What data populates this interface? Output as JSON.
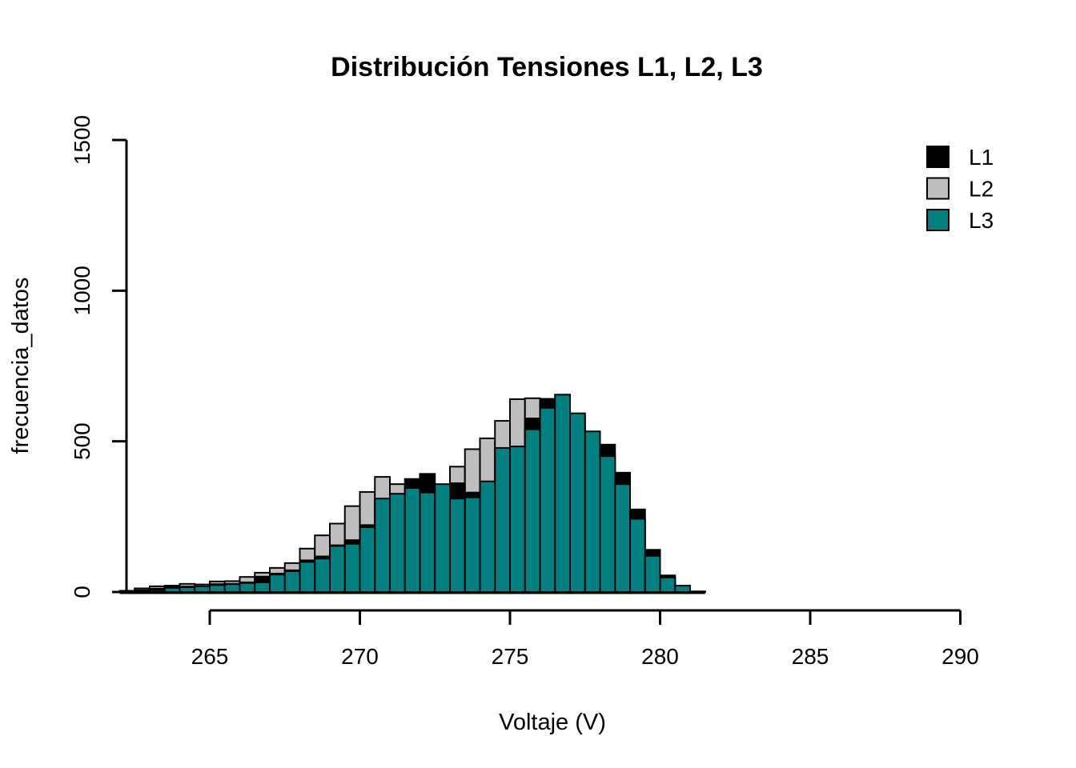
{
  "title": "Distribución Tensiones L1, L2, L3",
  "x_axis": {
    "label": "Voltaje (V)",
    "ticks": [
      265,
      270,
      275,
      280,
      285,
      290
    ]
  },
  "y_axis": {
    "label": "frecuencia_datos",
    "ticks": [
      0,
      500,
      1000,
      1500
    ]
  },
  "legend": {
    "position": "topright",
    "entries": [
      {
        "label": "L1",
        "color": "#000000"
      },
      {
        "label": "L2",
        "color": "#BEBEBE"
      },
      {
        "label": "L3",
        "color": "#008080"
      }
    ]
  },
  "chart_data": {
    "type": "bar",
    "subtype": "overlaid-histograms",
    "title": "Distribución Tensiones L1, L2, L3",
    "xlabel": "Voltaje (V)",
    "ylabel": "frecuencia_datos",
    "xlim": [
      262,
      290
    ],
    "ylim": [
      0,
      1500
    ],
    "x_ticks": [
      265,
      270,
      275,
      280,
      285,
      290
    ],
    "y_ticks": [
      0,
      500,
      1000,
      1500
    ],
    "grid": false,
    "bin_width": 0.5,
    "bin_starts": [
      262,
      262.5,
      263,
      263.5,
      264,
      264.5,
      265,
      265.5,
      266,
      266.5,
      267,
      267.5,
      268,
      268.5,
      269,
      269.5,
      270,
      270.5,
      271,
      271.5,
      272,
      272.5,
      273,
      273.5,
      274,
      274.5,
      275,
      275.5,
      276,
      276.5,
      277,
      277.5,
      278,
      278.5,
      279,
      279.5,
      280,
      280.5,
      281
    ],
    "draw_order": [
      "L2",
      "L1",
      "L3"
    ],
    "series": [
      {
        "name": "L1",
        "color": "#000000",
        "values": [
          3,
          6,
          11,
          16,
          18,
          17,
          26,
          27,
          32,
          51,
          61,
          72,
          105,
          118,
          155,
          172,
          222,
          300,
          315,
          375,
          392,
          345,
          361,
          330,
          365,
          475,
          480,
          576,
          641,
          640,
          585,
          520,
          489,
          396,
          274,
          140,
          55,
          10,
          1
        ]
      },
      {
        "name": "L2",
        "color": "#BEBEBE",
        "values": [
          4,
          12,
          19,
          21,
          27,
          25,
          35,
          36,
          50,
          64,
          80,
          96,
          144,
          188,
          227,
          285,
          332,
          382,
          358,
          340,
          325,
          350,
          416,
          474,
          510,
          568,
          640,
          643,
          600,
          620,
          560,
          500,
          440,
          350,
          235,
          110,
          45,
          12,
          1
        ]
      },
      {
        "name": "L3",
        "color": "#008080",
        "values": [
          2,
          4,
          6,
          14,
          16,
          19,
          23,
          26,
          30,
          32,
          58,
          69,
          100,
          111,
          153,
          160,
          215,
          310,
          326,
          345,
          330,
          358,
          310,
          314,
          367,
          478,
          483,
          540,
          611,
          655,
          593,
          533,
          451,
          358,
          243,
          120,
          48,
          21,
          2
        ]
      }
    ]
  }
}
